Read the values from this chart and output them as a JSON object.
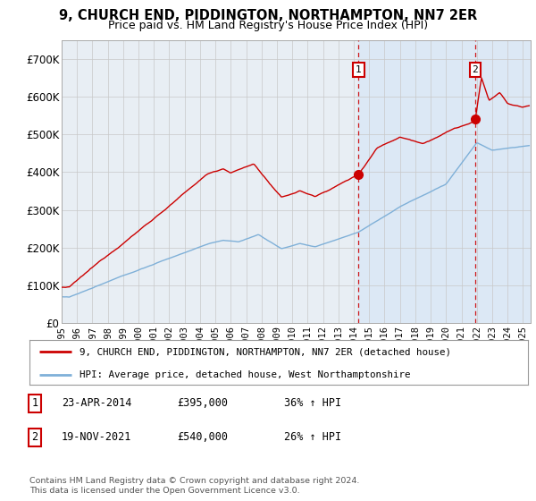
{
  "title": "9, CHURCH END, PIDDINGTON, NORTHAMPTON, NN7 2ER",
  "subtitle": "Price paid vs. HM Land Registry's House Price Index (HPI)",
  "legend_line1": "9, CHURCH END, PIDDINGTON, NORTHAMPTON, NN7 2ER (detached house)",
  "legend_line2": "HPI: Average price, detached house, West Northamptonshire",
  "annotation1_date": "23-APR-2014",
  "annotation1_price": "£395,000",
  "annotation1_hpi": "36% ↑ HPI",
  "annotation2_date": "19-NOV-2021",
  "annotation2_price": "£540,000",
  "annotation2_hpi": "26% ↑ HPI",
  "footer": "Contains HM Land Registry data © Crown copyright and database right 2024.\nThis data is licensed under the Open Government Licence v3.0.",
  "sale1_x": 2014.31,
  "sale1_y": 395000,
  "sale2_x": 2021.89,
  "sale2_y": 540000,
  "red_line_color": "#cc0000",
  "blue_line_color": "#7fb0d8",
  "bg_color": "#e8eef4",
  "highlight_band_color": "#d0dff0",
  "grid_color": "#c8c8c8",
  "dashed_line_color": "#cc0000",
  "ylim_min": 0,
  "ylim_max": 750000,
  "xlim_min": 1995,
  "xlim_max": 2025.5,
  "yticks": [
    0,
    100000,
    200000,
    300000,
    400000,
    500000,
    600000,
    700000
  ],
  "ytick_labels": [
    "£0",
    "£100K",
    "£200K",
    "£300K",
    "£400K",
    "£500K",
    "£600K",
    "£700K"
  ],
  "xticks": [
    1995,
    1996,
    1997,
    1998,
    1999,
    2000,
    2001,
    2002,
    2003,
    2004,
    2005,
    2006,
    2007,
    2008,
    2009,
    2010,
    2011,
    2012,
    2013,
    2014,
    2015,
    2016,
    2017,
    2018,
    2019,
    2020,
    2021,
    2022,
    2023,
    2024,
    2025
  ]
}
